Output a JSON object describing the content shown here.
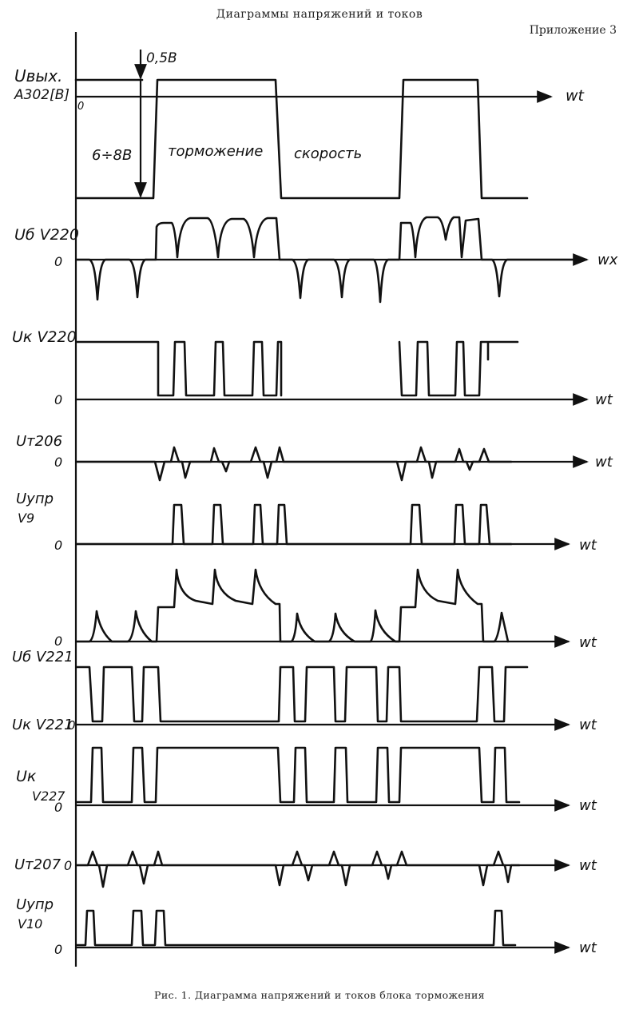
{
  "header": {
    "title": "Диаграммы напряжений и токов",
    "appendix": "Приложение 3"
  },
  "caption": "Рис. 1. Диаграмма напряжений и токов блока торможения",
  "annotations": {
    "pulse_amplitude": "0,5В",
    "low_level": "6÷8В",
    "braking": "торможение",
    "speed": "скорость"
  },
  "traces": [
    {
      "label": "Uвых. A302[B]",
      "zero": "0",
      "axis": "wt"
    },
    {
      "label": "Uб V220",
      "zero": "0",
      "axis": "wx"
    },
    {
      "label": "Uк V220",
      "zero": "0",
      "axis": "wt"
    },
    {
      "label": "Uт206",
      "zero": "0",
      "axis": "wt"
    },
    {
      "label": "Uупр V9",
      "zero": "0",
      "axis": "wt"
    },
    {
      "label": "",
      "zero": "0",
      "axis": "wt"
    },
    {
      "label": "Uб V221",
      "zero": "",
      "axis": ""
    },
    {
      "label": "Uк V221",
      "zero": "0",
      "axis": "wt"
    },
    {
      "label": "Uк V227",
      "zero": "0",
      "axis": "wt"
    },
    {
      "label": "Uт207",
      "zero": "0",
      "axis": "wt"
    },
    {
      "label": "Uупр V10",
      "zero": "0",
      "axis": "wt"
    }
  ]
}
